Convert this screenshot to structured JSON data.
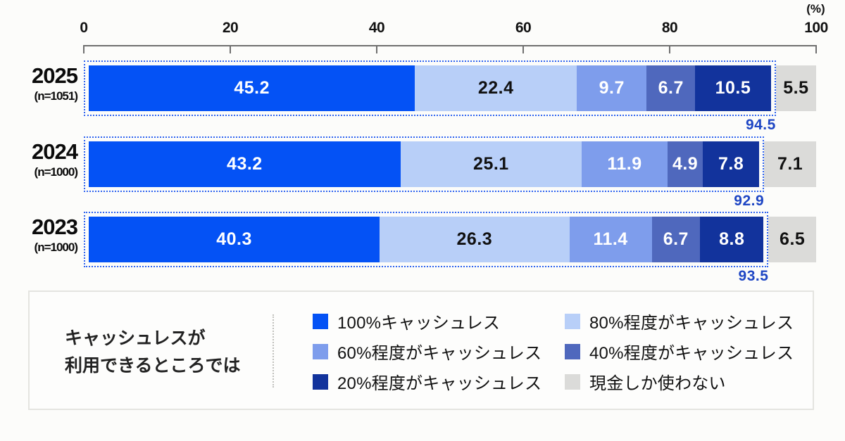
{
  "unit_label": "(%)",
  "axis": {
    "min": 0,
    "max": 100,
    "ticks": [
      0,
      20,
      40,
      60,
      80,
      100
    ]
  },
  "colors": {
    "accent_dotted_border": "#2e63f0",
    "total_label_blue": "#1e46c4",
    "axis_gray": "#6f6f6f"
  },
  "chart_data": {
    "type": "bar",
    "orientation": "horizontal",
    "stacked": true,
    "title": "",
    "xlabel": "(%)",
    "xlim": [
      0,
      100
    ],
    "categories": [
      "2025",
      "2024",
      "2023"
    ],
    "series": [
      {
        "name": "100%キャッシュレス",
        "color": "#0452f5",
        "value_text_color": "#ffffff",
        "values": [
          45.2,
          43.2,
          40.3
        ]
      },
      {
        "name": "80%程度がキャッシュレス",
        "color": "#b8cff8",
        "value_text_color": "#111111",
        "values": [
          22.4,
          25.1,
          26.3
        ]
      },
      {
        "name": "60%程度がキャッシュレス",
        "color": "#7e9dec",
        "value_text_color": "#ffffff",
        "values": [
          9.7,
          11.9,
          11.4
        ]
      },
      {
        "name": "40%程度がキャッシュレス",
        "color": "#4f68bd",
        "value_text_color": "#ffffff",
        "values": [
          6.7,
          4.9,
          6.7
        ]
      },
      {
        "name": "20%程度がキャッシュレス",
        "color": "#12339c",
        "value_text_color": "#ffffff",
        "values": [
          10.5,
          7.8,
          8.8
        ]
      },
      {
        "name": "現金しか使わない",
        "color": "#dbdbd9",
        "value_text_color": "#111111",
        "values": [
          5.5,
          7.1,
          6.5
        ]
      }
    ],
    "rows": [
      {
        "year": "2025",
        "n_label": "(n=1051)",
        "values": [
          45.2,
          22.4,
          9.7,
          6.7,
          10.5,
          5.5
        ],
        "cashless_total": 94.5
      },
      {
        "year": "2024",
        "n_label": "(n=1000)",
        "values": [
          43.2,
          25.1,
          11.9,
          4.9,
          7.8,
          7.1
        ],
        "cashless_total": 92.9
      },
      {
        "year": "2023",
        "n_label": "(n=1000)",
        "values": [
          40.3,
          26.3,
          11.4,
          6.7,
          8.8,
          6.5
        ],
        "cashless_total": 93.5
      }
    ]
  },
  "legend": {
    "context_line1": "キャッシュレスが",
    "context_line2": "利用できるところでは",
    "items": [
      {
        "label": "100%キャッシュレス",
        "color": "#0452f5"
      },
      {
        "label": "80%程度がキャッシュレス",
        "color": "#b8cff8"
      },
      {
        "label": "60%程度がキャッシュレス",
        "color": "#7e9dec"
      },
      {
        "label": "40%程度がキャッシュレス",
        "color": "#4f68bd"
      },
      {
        "label": "20%程度がキャッシュレス",
        "color": "#12339c"
      },
      {
        "label": "現金しか使わない",
        "color": "#dbdbd9"
      }
    ]
  }
}
